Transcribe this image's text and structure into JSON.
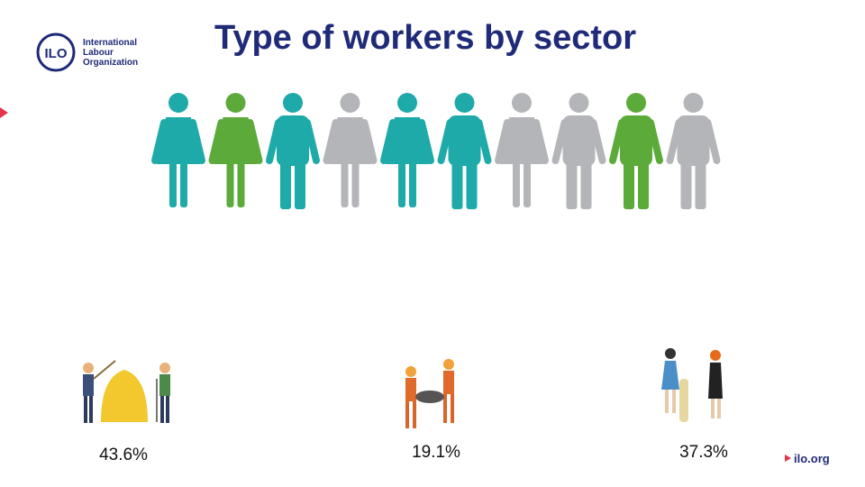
{
  "header": {
    "title": "Type of workers by sector",
    "logo_text": [
      "International",
      "Labour",
      "Organization"
    ]
  },
  "sectors": [
    {
      "share": "43.6%"
    },
    {
      "share": "19.1%"
    },
    {
      "share": "37.3%"
    }
  ],
  "footer": {
    "link": "ilo.org"
  }
}
